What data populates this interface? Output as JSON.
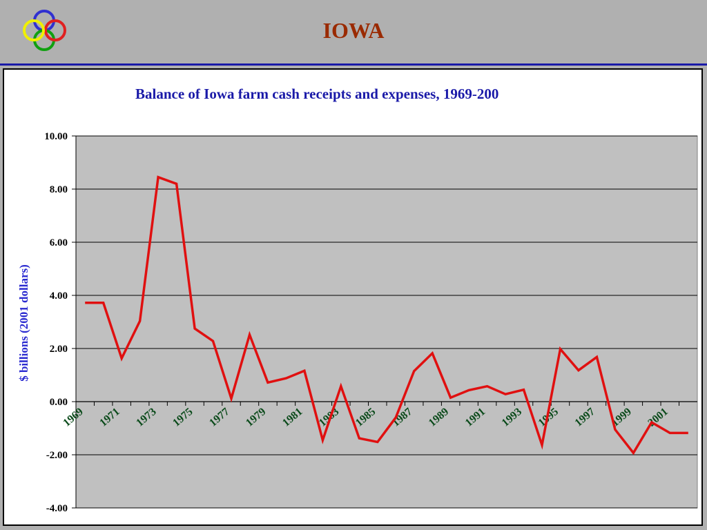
{
  "header": {
    "title": "IOWA",
    "logo": "interlocking-rings-logo"
  },
  "colors": {
    "title": "#9a2a00",
    "rule": "#1a1aa8",
    "line": "#e01010",
    "plot_bg": "#c0c0c0",
    "ring_blue": "#3030d0",
    "ring_red": "#e02020",
    "ring_yellow": "#f0f000",
    "ring_green": "#10a010"
  },
  "chart_data": {
    "type": "line",
    "title": "Balance of Iowa farm cash receipts and expenses, 1969-200",
    "ylabel": "$ billions (2001 dollars)",
    "xlabel": "",
    "ylim": [
      -4,
      10
    ],
    "yticks": [
      "10.00",
      "8.00",
      "6.00",
      "4.00",
      "2.00",
      "0.00",
      "-2.00",
      "-4.00"
    ],
    "ytick_values": [
      10,
      8,
      6,
      4,
      2,
      0,
      -2,
      -4
    ],
    "xtick_labels": [
      "1969",
      "1971",
      "1973",
      "1975",
      "1977",
      "1979",
      "1981",
      "1983",
      "1985",
      "1987",
      "1989",
      "1991",
      "1993",
      "1995",
      "1997",
      "1999",
      "2001"
    ],
    "grid": true,
    "series": [
      {
        "x": [
          1969,
          1970,
          1971,
          1972,
          1973,
          1974,
          1975,
          1976,
          1977,
          1978,
          1979,
          1980,
          1981,
          1982,
          1983,
          1984,
          1985,
          1986,
          1987,
          1988,
          1989,
          1990,
          1991,
          1992,
          1993,
          1994,
          1995,
          1996,
          1997,
          1998,
          1999,
          2000,
          2001,
          2002
        ],
        "values": [
          3.72,
          3.72,
          1.63,
          3.03,
          8.45,
          8.2,
          2.75,
          2.28,
          0.12,
          2.52,
          0.72,
          0.88,
          1.16,
          -1.45,
          0.58,
          -1.38,
          -1.52,
          -0.6,
          1.15,
          1.82,
          0.15,
          0.43,
          0.58,
          0.28,
          0.45,
          -1.63,
          1.98,
          1.18,
          1.68,
          -1.05,
          -1.93,
          -0.78,
          -1.18,
          -1.18
        ]
      }
    ]
  }
}
